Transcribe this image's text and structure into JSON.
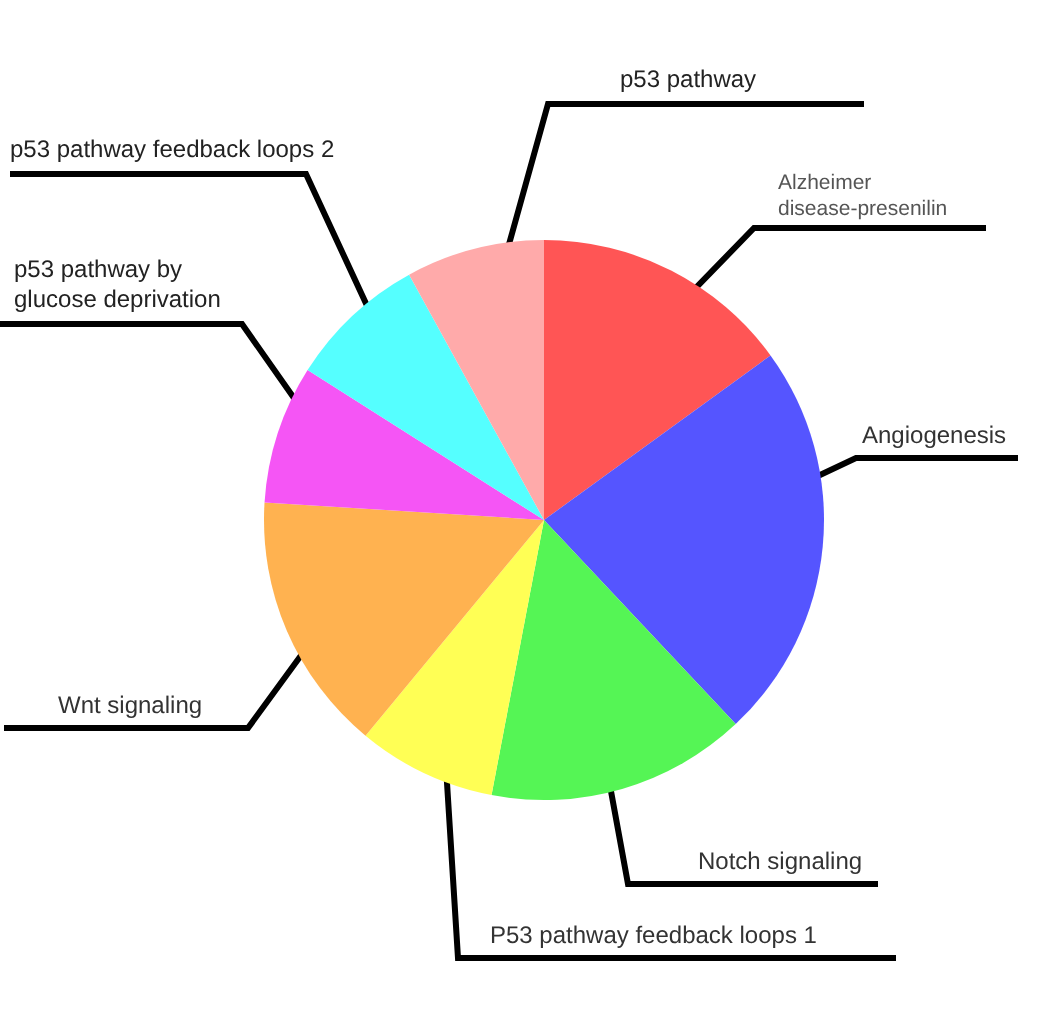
{
  "chart_data": {
    "type": "pie",
    "categories": [
      "Alzheimer disease-presenilin",
      "Angiogenesis",
      "Notch signaling",
      "P53 pathway feedback loops 1",
      "Wnt signaling",
      "p53 pathway by glucose deprivation",
      "p53 pathway feedback loops 2",
      "p53 pathway"
    ],
    "values": [
      15,
      23,
      15,
      8,
      15,
      8,
      8,
      8
    ],
    "colors": [
      "#ff5555",
      "#5555ff",
      "#55f555",
      "#ffff55",
      "#ffb250",
      "#f555f5",
      "#55ffff",
      "#ffaaaa"
    ]
  }
}
